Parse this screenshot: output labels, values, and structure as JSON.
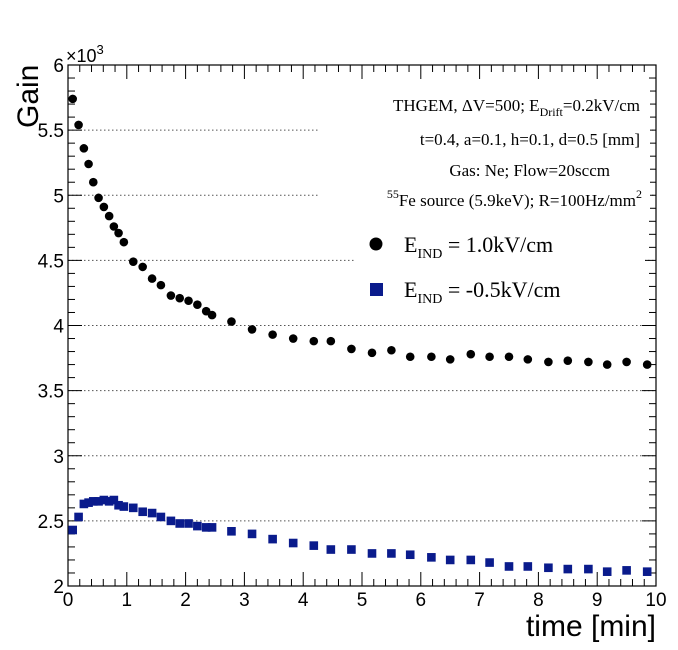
{
  "chart_data": {
    "type": "scatter",
    "xlabel": "time [min]",
    "ylabel": "Gain",
    "exponent_base": "×10",
    "exponent_power": "3",
    "xlim": [
      0,
      10
    ],
    "ylim": [
      2000,
      6000
    ],
    "grid": "horizontal dotted",
    "x_ticks": [
      0,
      1,
      2,
      3,
      4,
      5,
      6,
      7,
      8,
      9,
      10
    ],
    "x_tick_labels": [
      "0",
      "1",
      "2",
      "3",
      "4",
      "5",
      "6",
      "7",
      "8",
      "9",
      "10"
    ],
    "y_ticks": [
      2000,
      2500,
      3000,
      3500,
      4000,
      4500,
      5000,
      5500,
      6000
    ],
    "y_tick_labels": [
      "2",
      "2.5",
      "3",
      "3.5",
      "4",
      "4.5",
      "5",
      "5.5",
      "6"
    ],
    "annotations": {
      "line1_pre": "THGEM, ΔV=500; E",
      "line1_sub": "Drift",
      "line1_post": "=0.2kV/cm",
      "line2": "t=0.4, a=0.1, h=0.1, d=0.5 [mm]",
      "line3": "Gas: Ne; Flow=20sccm",
      "line4_sup": "55",
      "line4_mid": "Fe source (5.9keV); R=100Hz/mm",
      "line4_sup2": "2"
    },
    "legend_position": "right",
    "series": [
      {
        "name": "E_IND = 1.0kV/cm",
        "legend_pre": "E",
        "legend_sub": "IND",
        "legend_post": " = 1.0kV/cm",
        "marker": "circle",
        "color": "#000000",
        "points": [
          [
            0.08,
            5740
          ],
          [
            0.18,
            5540
          ],
          [
            0.27,
            5360
          ],
          [
            0.35,
            5240
          ],
          [
            0.43,
            5100
          ],
          [
            0.52,
            4980
          ],
          [
            0.61,
            4910
          ],
          [
            0.7,
            4840
          ],
          [
            0.78,
            4760
          ],
          [
            0.86,
            4710
          ],
          [
            0.95,
            4640
          ],
          [
            1.11,
            4490
          ],
          [
            1.27,
            4450
          ],
          [
            1.43,
            4360
          ],
          [
            1.58,
            4310
          ],
          [
            1.75,
            4230
          ],
          [
            1.9,
            4210
          ],
          [
            2.05,
            4190
          ],
          [
            2.2,
            4160
          ],
          [
            2.35,
            4110
          ],
          [
            2.45,
            4080
          ],
          [
            2.78,
            4030
          ],
          [
            3.13,
            3970
          ],
          [
            3.48,
            3930
          ],
          [
            3.83,
            3900
          ],
          [
            4.18,
            3880
          ],
          [
            4.47,
            3880
          ],
          [
            4.82,
            3820
          ],
          [
            5.17,
            3790
          ],
          [
            5.5,
            3810
          ],
          [
            5.82,
            3760
          ],
          [
            6.18,
            3760
          ],
          [
            6.5,
            3740
          ],
          [
            6.85,
            3780
          ],
          [
            7.17,
            3760
          ],
          [
            7.5,
            3760
          ],
          [
            7.82,
            3740
          ],
          [
            8.17,
            3720
          ],
          [
            8.5,
            3730
          ],
          [
            8.85,
            3720
          ],
          [
            9.17,
            3700
          ],
          [
            9.5,
            3720
          ],
          [
            9.85,
            3700
          ]
        ]
      },
      {
        "name": "E_IND = -0.5kV/cm",
        "legend_pre": "E",
        "legend_sub": "IND",
        "legend_post": " = -0.5kV/cm",
        "marker": "square",
        "color": "#0a1b8c",
        "points": [
          [
            0.08,
            2430
          ],
          [
            0.18,
            2530
          ],
          [
            0.27,
            2630
          ],
          [
            0.35,
            2640
          ],
          [
            0.43,
            2650
          ],
          [
            0.52,
            2650
          ],
          [
            0.61,
            2660
          ],
          [
            0.7,
            2650
          ],
          [
            0.78,
            2660
          ],
          [
            0.86,
            2620
          ],
          [
            0.95,
            2610
          ],
          [
            1.11,
            2600
          ],
          [
            1.27,
            2570
          ],
          [
            1.43,
            2560
          ],
          [
            1.58,
            2530
          ],
          [
            1.75,
            2500
          ],
          [
            1.9,
            2480
          ],
          [
            2.05,
            2480
          ],
          [
            2.2,
            2460
          ],
          [
            2.35,
            2450
          ],
          [
            2.45,
            2450
          ],
          [
            2.78,
            2420
          ],
          [
            3.13,
            2400
          ],
          [
            3.48,
            2360
          ],
          [
            3.83,
            2330
          ],
          [
            4.18,
            2310
          ],
          [
            4.47,
            2280
          ],
          [
            4.82,
            2280
          ],
          [
            5.17,
            2250
          ],
          [
            5.5,
            2250
          ],
          [
            5.82,
            2240
          ],
          [
            6.18,
            2220
          ],
          [
            6.5,
            2200
          ],
          [
            6.85,
            2200
          ],
          [
            7.17,
            2180
          ],
          [
            7.5,
            2150
          ],
          [
            7.82,
            2150
          ],
          [
            8.17,
            2140
          ],
          [
            8.5,
            2130
          ],
          [
            8.85,
            2130
          ],
          [
            9.17,
            2110
          ],
          [
            9.5,
            2120
          ],
          [
            9.85,
            2110
          ]
        ]
      }
    ]
  }
}
